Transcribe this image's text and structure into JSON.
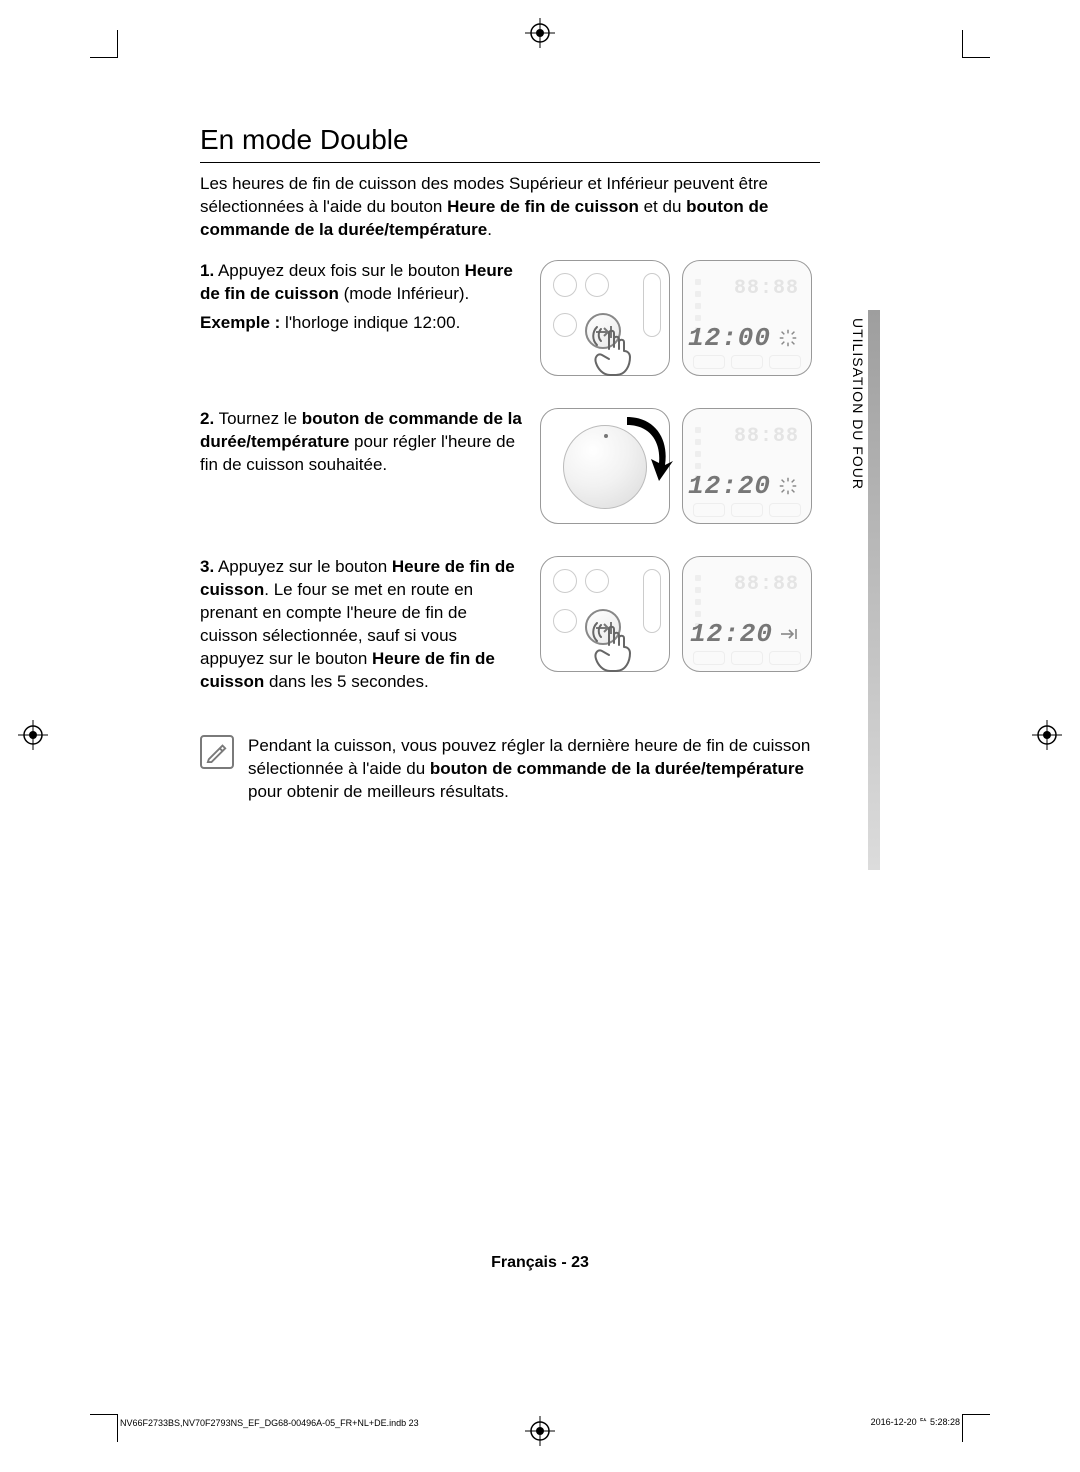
{
  "page": {
    "title": "En mode Double",
    "intro_parts": {
      "p1": "Les heures de fin de cuisson des modes Supérieur et Inférieur peuvent être sélectionnées à l'aide du bouton ",
      "b1": "Heure de fin de cuisson",
      "p2": " et du ",
      "b2": "bouton de commande de la durée/température",
      "p3": "."
    },
    "sidebar_label": "UTILISATION DU FOUR",
    "footer": "Français - 23",
    "meta_left": "NV66F2733BS,NV70F2793NS_EF_DG68-00496A-05_FR+NL+DE.indb   23",
    "meta_right": "2016-12-20   ᄃᄉ 5:28:28"
  },
  "steps": [
    {
      "num": "1.",
      "runs": [
        {
          "t": " Appuyez deux fois sur le bouton "
        },
        {
          "t": "Heure de fin de cuisson",
          "b": true
        },
        {
          "t": " (mode Inférieur)."
        }
      ],
      "line2_runs": [
        {
          "t": "Exemple :",
          "b": true
        },
        {
          "t": "  l'horloge indique 12:00."
        }
      ],
      "panel_type": "press",
      "display_faint": "88:88",
      "display_main": "12:00",
      "display_tail": "blink"
    },
    {
      "num": "2.",
      "runs": [
        {
          "t": " Tournez le "
        },
        {
          "t": "bouton de commande de la durée/température",
          "b": true
        },
        {
          "t": " pour régler l'heure de fin de cuisson souhaitée."
        }
      ],
      "panel_type": "dial",
      "display_faint": "88:88",
      "display_main": "12:20",
      "display_tail": "blink"
    },
    {
      "num": "3.",
      "runs": [
        {
          "t": " Appuyez sur le bouton "
        },
        {
          "t": "Heure de fin de cuisson",
          "b": true
        },
        {
          "t": ". Le four se met en route en prenant en compte l'heure de fin de cuisson sélectionnée, sauf si vous appuyez sur le bouton "
        },
        {
          "t": "Heure de fin de cuisson",
          "b": true
        },
        {
          "t": " dans les 5 secondes."
        }
      ],
      "panel_type": "press",
      "display_faint": "88:88",
      "display_main": "12:20",
      "display_tail": "end"
    }
  ],
  "note_runs": [
    {
      "t": "Pendant la cuisson, vous pouvez régler la dernière heure de fin de cuisson sélectionnée à l'aide du "
    },
    {
      "t": "bouton de commande de la durée/température",
      "b": true
    },
    {
      "t": " pour obtenir de meilleurs résultats."
    }
  ],
  "colors": {
    "text": "#000000",
    "panel_border": "#999999",
    "faint_segment": "#e4e4e4",
    "segment": "#777777",
    "sidebar_top": "#9e9e9e",
    "sidebar_bottom": "#dcdcdc"
  }
}
